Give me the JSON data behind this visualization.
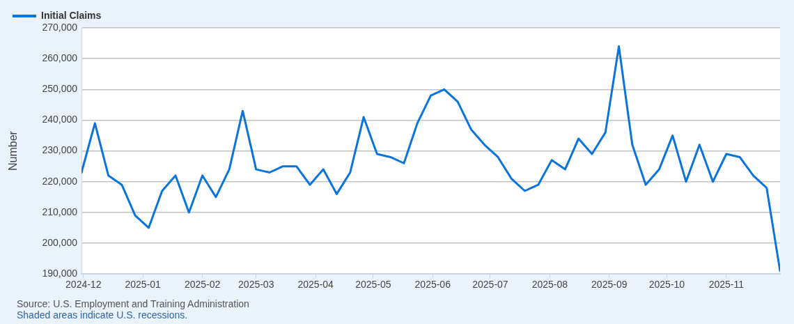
{
  "chart_data": {
    "type": "line",
    "x": [
      "2024-11-30",
      "2024-12-07",
      "2024-12-14",
      "2024-12-21",
      "2024-12-28",
      "2025-01-04",
      "2025-01-11",
      "2025-01-18",
      "2025-01-25",
      "2025-02-01",
      "2025-02-08",
      "2025-02-15",
      "2025-02-22",
      "2025-03-01",
      "2025-03-08",
      "2025-03-15",
      "2025-03-22",
      "2025-03-29",
      "2025-04-05",
      "2025-04-12",
      "2025-04-19",
      "2025-04-26",
      "2025-05-03",
      "2025-05-10",
      "2025-05-17",
      "2025-05-24",
      "2025-05-31",
      "2025-06-07",
      "2025-06-14",
      "2025-06-21",
      "2025-06-28",
      "2025-07-05",
      "2025-07-12",
      "2025-07-19",
      "2025-07-26",
      "2025-08-02",
      "2025-08-09",
      "2025-08-16",
      "2025-08-23",
      "2025-08-30",
      "2025-09-06",
      "2025-09-13",
      "2025-09-20",
      "2025-09-27",
      "2025-10-04",
      "2025-10-11",
      "2025-10-18",
      "2025-10-25",
      "2025-11-01",
      "2025-11-08",
      "2025-11-15",
      "2025-11-22",
      "2025-11-29"
    ],
    "series": [
      {
        "name": "Initial Claims",
        "color": "#0a74da",
        "values": [
          223000,
          239000,
          222000,
          219000,
          209000,
          205000,
          217000,
          222000,
          210000,
          222000,
          215000,
          224000,
          243000,
          224000,
          223000,
          225000,
          225000,
          219000,
          224000,
          216000,
          223000,
          241000,
          229000,
          228000,
          226000,
          239000,
          248000,
          250000,
          246000,
          237000,
          232000,
          228000,
          221000,
          217000,
          219000,
          227000,
          224000,
          234000,
          229000,
          236000,
          264000,
          232000,
          219000,
          224000,
          235000,
          220000,
          232000,
          220000,
          229000,
          228000,
          222000,
          218000,
          191000
        ]
      }
    ],
    "ylabel": "Number",
    "xlim": [
      "2024-11-30",
      "2025-11-29"
    ],
    "xticks": [
      "2024-12",
      "2025-01",
      "2025-02",
      "2025-03",
      "2025-04",
      "2025-05",
      "2025-06",
      "2025-07",
      "2025-08",
      "2025-09",
      "2025-10",
      "2025-11"
    ],
    "ylim": [
      190000,
      270000
    ],
    "yticks": [
      {
        "value": 190000,
        "label": "190,000"
      },
      {
        "value": 200000,
        "label": "200,000"
      },
      {
        "value": 210000,
        "label": "210,000"
      },
      {
        "value": 220000,
        "label": "220,000"
      },
      {
        "value": 230000,
        "label": "230,000"
      },
      {
        "value": 240000,
        "label": "240,000"
      },
      {
        "value": 250000,
        "label": "250,000"
      },
      {
        "value": 260000,
        "label": "260,000"
      },
      {
        "value": 270000,
        "label": "270,000"
      }
    ],
    "grid": "y",
    "legend": "top left",
    "marker": "none",
    "line_style": "solid",
    "annotations": [
      "Source: U.S. Employment and Training Administration",
      "Shaded areas indicate U.S. recessions."
    ]
  }
}
